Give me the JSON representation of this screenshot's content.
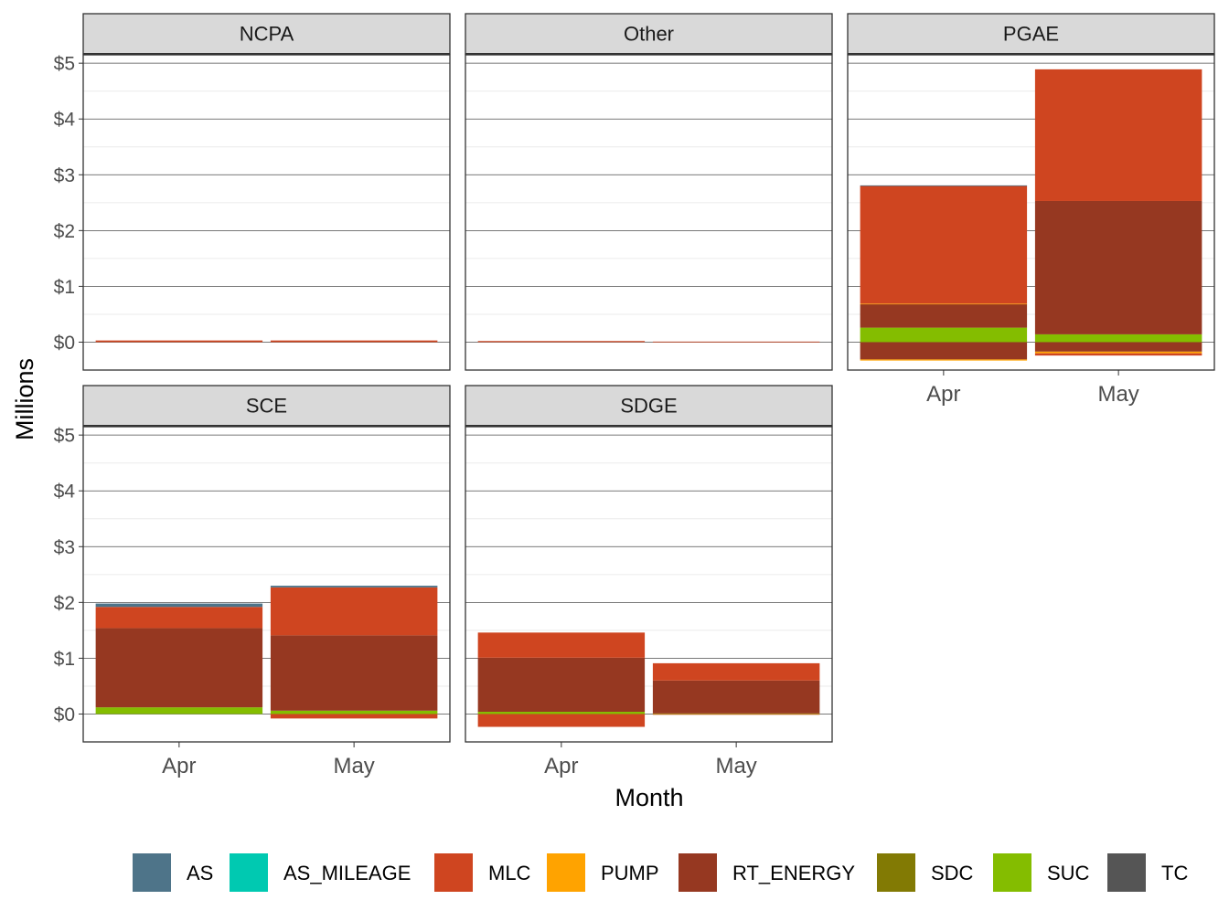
{
  "chart_data": {
    "type": "bar",
    "stacked": true,
    "facet": "ISO",
    "xlabel": "Month",
    "ylabel": "Millions",
    "categories": [
      "Apr",
      "May"
    ],
    "y_ticks": [
      "$0",
      "$1",
      "$2",
      "$3",
      "$4",
      "$5"
    ],
    "ylim": [
      -0.5,
      5.15
    ],
    "grid": true,
    "legend_position": "bottom",
    "legend": [
      {
        "name": "AS",
        "color": "#4E7489"
      },
      {
        "name": "AS_MILEAGE",
        "color": "#00C9B1"
      },
      {
        "name": "MLC",
        "color": "#CF4520"
      },
      {
        "name": "PUMP",
        "color": "#FFA300"
      },
      {
        "name": "RT_ENERGY",
        "color": "#963821"
      },
      {
        "name": "SDC",
        "color": "#827A04"
      },
      {
        "name": "SUC",
        "color": "#84BD00"
      },
      {
        "name": "TC",
        "color": "#555555"
      }
    ],
    "facets": [
      {
        "title": "NCPA",
        "bars": [
          {
            "category": "Apr",
            "segments": [
              {
                "series": "MLC",
                "value": 0.03
              }
            ]
          },
          {
            "category": "May",
            "segments": [
              {
                "series": "MLC",
                "value": 0.03
              }
            ]
          }
        ]
      },
      {
        "title": "Other",
        "bars": [
          {
            "category": "Apr",
            "segments": [
              {
                "series": "MLC",
                "value": 0.02
              }
            ]
          },
          {
            "category": "May",
            "segments": [
              {
                "series": "MLC",
                "value": 0.01
              }
            ]
          }
        ]
      },
      {
        "title": "PGAE",
        "bars": [
          {
            "category": "Apr",
            "segments": [
              {
                "series": "SUC",
                "value": 0.26
              },
              {
                "series": "RT_ENERGY",
                "value": 0.42
              },
              {
                "series": "PUMP",
                "value": 0.01
              },
              {
                "series": "MLC",
                "value": 2.11
              },
              {
                "series": "AS",
                "value": 0.01
              },
              {
                "series": "RT_ENERGY",
                "value": -0.31
              },
              {
                "series": "PUMP",
                "value": -0.02
              }
            ]
          },
          {
            "category": "May",
            "segments": [
              {
                "series": "SUC",
                "value": 0.14
              },
              {
                "series": "RT_ENERGY",
                "value": 2.39
              },
              {
                "series": "MLC",
                "value": 2.36
              },
              {
                "series": "RT_ENERGY",
                "value": -0.17
              },
              {
                "series": "PUMP",
                "value": -0.03
              },
              {
                "series": "MLC",
                "value": -0.04
              }
            ]
          }
        ]
      },
      {
        "title": "SCE",
        "bars": [
          {
            "category": "Apr",
            "segments": [
              {
                "series": "SUC",
                "value": 0.12
              },
              {
                "series": "RT_ENERGY",
                "value": 1.42
              },
              {
                "series": "MLC",
                "value": 0.38
              },
              {
                "series": "AS",
                "value": 0.06
              }
            ]
          },
          {
            "category": "May",
            "segments": [
              {
                "series": "SUC",
                "value": 0.06
              },
              {
                "series": "RT_ENERGY",
                "value": 1.35
              },
              {
                "series": "MLC",
                "value": 0.86
              },
              {
                "series": "AS",
                "value": 0.03
              },
              {
                "series": "MLC",
                "value": -0.08
              }
            ]
          }
        ]
      },
      {
        "title": "SDGE",
        "bars": [
          {
            "category": "Apr",
            "segments": [
              {
                "series": "SUC",
                "value": 0.04
              },
              {
                "series": "RT_ENERGY",
                "value": 0.97
              },
              {
                "series": "MLC",
                "value": 0.45
              },
              {
                "series": "MLC",
                "value": -0.23
              }
            ]
          },
          {
            "category": "May",
            "segments": [
              {
                "series": "SUC",
                "value": 0.01
              },
              {
                "series": "RT_ENERGY",
                "value": 0.59
              },
              {
                "series": "MLC",
                "value": 0.31
              },
              {
                "series": "MLC",
                "value": -0.01
              }
            ]
          }
        ]
      }
    ]
  }
}
